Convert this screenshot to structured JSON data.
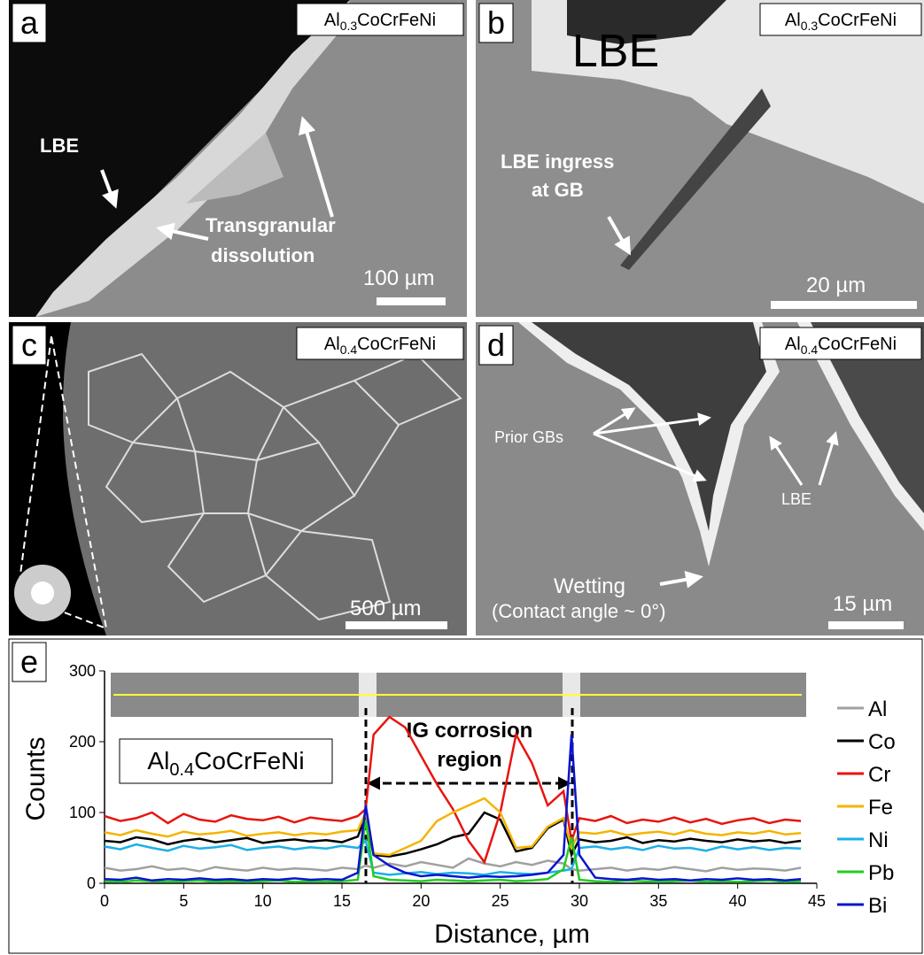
{
  "panels": [
    {
      "letter": "a",
      "material": [
        "Al",
        "0.3",
        "CoCrFeNi"
      ],
      "annotations": [
        "LBE",
        "Transgranular",
        "dissolution"
      ],
      "scale_bar": "100 µm"
    },
    {
      "letter": "b",
      "material": [
        "Al",
        "0.3",
        "CoCrFeNi"
      ],
      "annotations": [
        "LBE",
        "LBE ingress",
        "at GB"
      ],
      "scale_bar": "20 µm"
    },
    {
      "letter": "c",
      "material": [
        "Al",
        "0.4",
        "CoCrFeNi"
      ],
      "annotations": [],
      "scale_bar": "500 µm"
    },
    {
      "letter": "d",
      "material": [
        "Al",
        "0.4",
        "CoCrFeNi"
      ],
      "annotations": [
        "Prior GBs",
        "LBE",
        "Wetting",
        "(Contact angle ~ 0°)"
      ],
      "scale_bar": "15 µm"
    }
  ],
  "chart_data": {
    "type": "line",
    "panel_letter": "e",
    "material": [
      "Al",
      "0.4",
      "CoCrFeNi"
    ],
    "annotation": [
      "IG corrosion",
      "region"
    ],
    "xlabel": "Distance, µm",
    "ylabel": "Counts",
    "xlim": [
      0,
      45
    ],
    "xticks": [
      0,
      5,
      10,
      15,
      20,
      25,
      30,
      35,
      40,
      45
    ],
    "ylim": [
      0,
      300
    ],
    "yticks": [
      0,
      100,
      200,
      300
    ],
    "x": [
      0,
      1,
      2,
      3,
      4,
      5,
      6,
      7,
      8,
      9,
      10,
      11,
      12,
      13,
      14,
      15,
      16,
      16.5,
      17,
      18,
      19,
      20,
      21,
      22,
      23,
      24,
      25,
      26,
      27,
      28,
      29,
      29.5,
      30,
      31,
      32,
      33,
      34,
      35,
      36,
      37,
      38,
      39,
      40,
      41,
      42,
      43,
      44
    ],
    "series": [
      {
        "name": "Al",
        "color": "#a0a0a0",
        "values": [
          22,
          18,
          20,
          24,
          19,
          21,
          17,
          23,
          20,
          18,
          22,
          19,
          21,
          20,
          18,
          22,
          20,
          25,
          22,
          28,
          24,
          30,
          26,
          22,
          35,
          28,
          24,
          30,
          26,
          32,
          28,
          20,
          18,
          20,
          22,
          18,
          21,
          19,
          23,
          20,
          17,
          22,
          19,
          21,
          20,
          18,
          22
        ]
      },
      {
        "name": "Co",
        "color": "#000000",
        "values": [
          60,
          58,
          65,
          62,
          55,
          60,
          63,
          58,
          61,
          64,
          57,
          60,
          62,
          59,
          61,
          58,
          66,
          95,
          40,
          38,
          42,
          48,
          55,
          65,
          70,
          100,
          90,
          45,
          50,
          78,
          90,
          40,
          62,
          58,
          60,
          65,
          57,
          61,
          59,
          63,
          60,
          58,
          62,
          59,
          61,
          57,
          60
        ]
      },
      {
        "name": "Cr",
        "color": "#e8140f",
        "values": [
          95,
          88,
          92,
          100,
          85,
          98,
          90,
          87,
          96,
          91,
          89,
          94,
          86,
          93,
          90,
          88,
          95,
          105,
          210,
          235,
          220,
          180,
          140,
          105,
          60,
          30,
          100,
          210,
          170,
          110,
          130,
          60,
          92,
          88,
          95,
          85,
          90,
          87,
          93,
          86,
          91,
          84,
          89,
          92,
          85,
          90,
          88
        ]
      },
      {
        "name": "Fe",
        "color": "#f4b400",
        "values": [
          72,
          68,
          75,
          70,
          66,
          73,
          69,
          71,
          74,
          67,
          70,
          72,
          68,
          71,
          69,
          73,
          75,
          100,
          42,
          40,
          50,
          60,
          88,
          100,
          110,
          120,
          100,
          50,
          52,
          80,
          92,
          50,
          72,
          70,
          74,
          68,
          71,
          73,
          69,
          75,
          70,
          68,
          72,
          70,
          74,
          69,
          71
        ]
      },
      {
        "name": "Ni",
        "color": "#1ab0e8",
        "values": [
          52,
          48,
          55,
          50,
          46,
          53,
          49,
          51,
          54,
          47,
          50,
          52,
          48,
          51,
          49,
          53,
          50,
          60,
          15,
          12,
          14,
          16,
          13,
          15,
          14,
          12,
          16,
          14,
          13,
          15,
          18,
          20,
          50,
          52,
          48,
          51,
          47,
          53,
          49,
          50,
          46,
          52,
          48,
          51,
          47,
          50,
          49
        ]
      },
      {
        "name": "Pb",
        "color": "#22cc22",
        "values": [
          3,
          2,
          4,
          3,
          2,
          3,
          4,
          2,
          3,
          2,
          3,
          4,
          2,
          3,
          2,
          3,
          5,
          90,
          10,
          5,
          4,
          3,
          5,
          4,
          3,
          4,
          5,
          3,
          4,
          6,
          20,
          65,
          5,
          3,
          2,
          4,
          3,
          2,
          3,
          4,
          2,
          3,
          2,
          3,
          4,
          2,
          3
        ]
      },
      {
        "name": "Bi",
        "color": "#0a14d0",
        "values": [
          6,
          5,
          8,
          4,
          6,
          5,
          7,
          5,
          6,
          4,
          6,
          5,
          7,
          5,
          6,
          5,
          15,
          110,
          40,
          25,
          15,
          10,
          12,
          10,
          8,
          10,
          9,
          10,
          12,
          15,
          40,
          210,
          40,
          8,
          6,
          5,
          7,
          5,
          6,
          4,
          6,
          5,
          7,
          5,
          6,
          4,
          6
        ]
      }
    ]
  }
}
